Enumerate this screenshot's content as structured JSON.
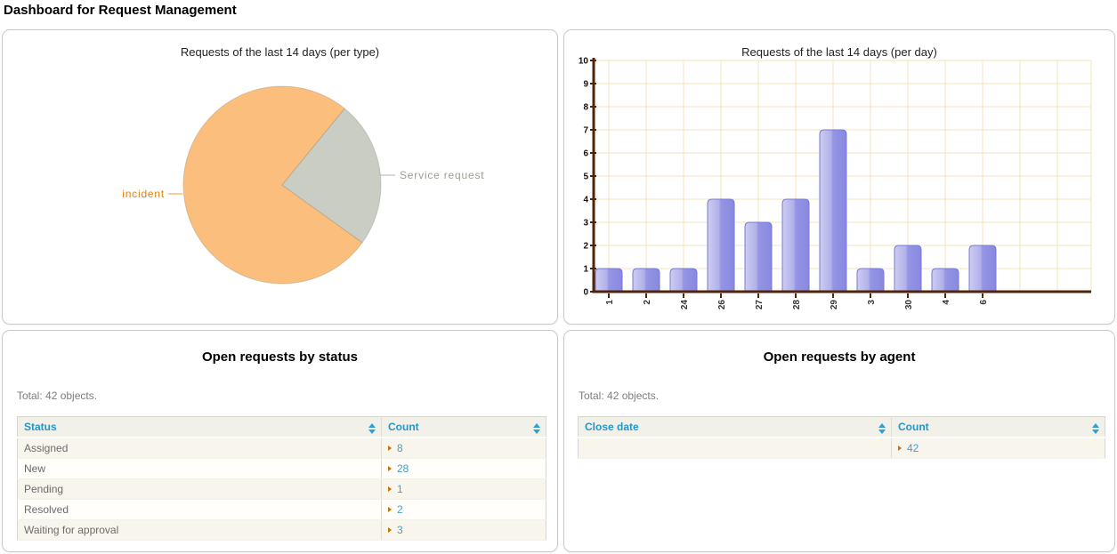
{
  "page": {
    "title": "Dashboard for Request Management"
  },
  "panels": {
    "by_status": {
      "title": "Open requests by status",
      "total": "Total: 42 objects."
    },
    "by_agent": {
      "title": "Open requests by agent",
      "total": "Total: 42 objects."
    }
  },
  "tables": {
    "by_status": {
      "columns": [
        {
          "label": "Status"
        },
        {
          "label": "Count"
        }
      ],
      "rows": [
        {
          "cells": [
            "Assigned",
            "8"
          ]
        },
        {
          "cells": [
            "New",
            "28"
          ]
        },
        {
          "cells": [
            "Pending",
            "1"
          ]
        },
        {
          "cells": [
            "Resolved",
            "2"
          ]
        },
        {
          "cells": [
            "Waiting for approval",
            "3"
          ]
        }
      ]
    },
    "by_agent": {
      "columns": [
        {
          "label": "Close date"
        },
        {
          "label": "Count"
        }
      ],
      "rows": [
        {
          "cells": [
            "",
            "42"
          ]
        }
      ]
    }
  },
  "chart_data": [
    {
      "type": "pie",
      "title": "Requests of the last 14 days (per type)",
      "labels": [
        "incident",
        "Service request"
      ],
      "values": [
        76,
        24
      ],
      "values_are_percent": true,
      "colors": [
        "#fbbe7c",
        "#c9cdc3"
      ],
      "label_colors": [
        "#e2820a",
        "#9aa094"
      ],
      "legend_position": "callout-labels"
    },
    {
      "type": "bar",
      "title": "Requests of the last 14 days (per day)",
      "categories": [
        "1",
        "2",
        "24",
        "26",
        "27",
        "28",
        "29",
        "3",
        "30",
        "4",
        "6"
      ],
      "values": [
        1,
        1,
        1,
        4,
        3,
        4,
        7,
        1,
        2,
        1,
        2
      ],
      "xlabel": "",
      "ylabel": "",
      "ylim": [
        0,
        10
      ],
      "ytick_step": 1,
      "grid": true,
      "bar_color_light": "#c6c6f0",
      "bar_color_dark": "#8888e0",
      "bar_border": "#7a7ad2",
      "axis_color": "#4f2408",
      "grid_color": "#f2e5bd"
    }
  ],
  "colors": {
    "header_link_blue": "#2596c8",
    "count_value_blue": "#3fa2cc",
    "marker_orange": "#c96f00",
    "muted_text": "#7d7d7d",
    "row_stripe_beige": "#f8f6ec"
  }
}
